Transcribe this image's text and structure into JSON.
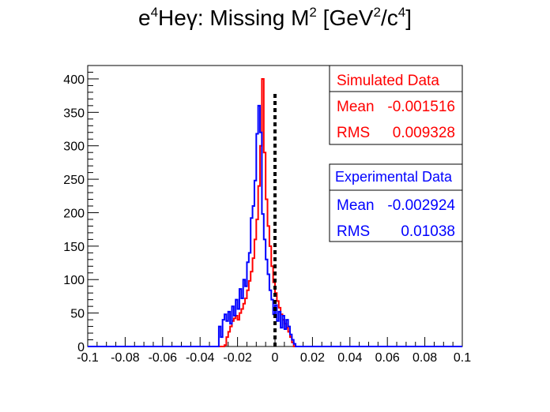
{
  "chart_data": {
    "type": "line",
    "title": {
      "prefix": "e",
      "sup1": "4",
      "mid": "He",
      "greek": "γ",
      "rest": ": Missing M",
      "sup2": "2",
      "bracket_open": " [GeV",
      "sup3": "2",
      "slash": "/c",
      "sup4": "4",
      "bracket_close": "]"
    },
    "xlim": [
      -0.1,
      0.1
    ],
    "ylim": [
      0,
      420
    ],
    "x_ticks": [
      "-0.1",
      "-0.08",
      "-0.06",
      "-0.04",
      "-0.02",
      "0",
      "0.02",
      "0.04",
      "0.06",
      "0.08",
      "0.1"
    ],
    "x_tick_values": [
      -0.1,
      -0.08,
      -0.06,
      -0.04,
      -0.02,
      0,
      0.02,
      0.04,
      0.06,
      0.08,
      0.1
    ],
    "y_ticks": [
      "0",
      "50",
      "100",
      "150",
      "200",
      "250",
      "300",
      "350",
      "400"
    ],
    "y_tick_values": [
      0,
      50,
      100,
      150,
      200,
      250,
      300,
      350,
      400
    ],
    "cut_line_x": 0,
    "cut_line_ymax": 380,
    "bin_width": 0.001,
    "bin_start": -0.1,
    "series": [
      {
        "name": "Simulated Data",
        "color": "#ff0000",
        "bins_x_start": -0.027,
        "values": [
          2,
          14,
          22,
          30,
          38,
          42,
          46,
          40,
          50,
          56,
          64,
          72,
          84,
          98,
          112,
          132,
          160,
          190,
          240,
          300,
          400,
          290,
          220,
          180,
          150,
          120,
          96,
          80,
          68,
          58,
          48,
          40,
          34,
          28,
          22,
          14,
          6,
          0
        ]
      },
      {
        "name": "Experimental Data",
        "color": "#0000ff",
        "bins_x_start": -0.03,
        "values": [
          30,
          14,
          40,
          48,
          38,
          52,
          34,
          60,
          46,
          70,
          56,
          86,
          72,
          100,
          90,
          126,
          140,
          192,
          210,
          248,
          318,
          360,
          320,
          198,
          160,
          130,
          108,
          84,
          70,
          48,
          62,
          38,
          52,
          28,
          46,
          26,
          40,
          30,
          18,
          10,
          4,
          0
        ]
      }
    ],
    "legend": [
      {
        "heading": "Simulated Data",
        "mean_label": "Mean",
        "mean_value": "-0.001516",
        "rms_label": "RMS",
        "rms_value": "0.009328",
        "color": "#ff0000"
      },
      {
        "heading": "Experimental Data",
        "mean_label": "Mean",
        "mean_value": "-0.002924",
        "rms_label": "RMS",
        "rms_value": "0.01038",
        "color": "#0000ff"
      }
    ]
  }
}
